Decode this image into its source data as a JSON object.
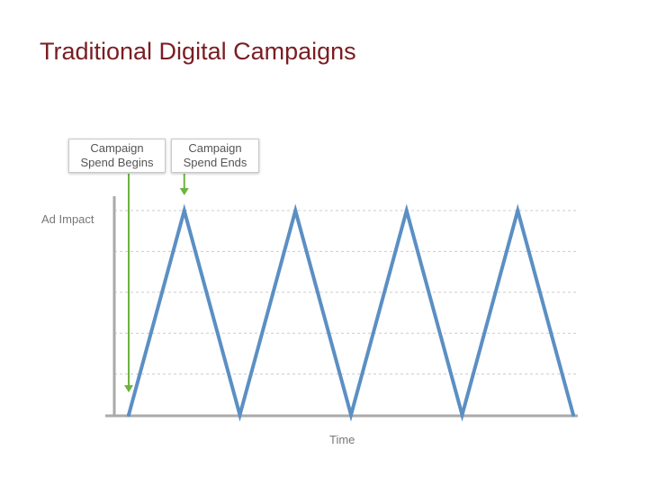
{
  "slide": {
    "title": "Traditional Digital Campaigns"
  },
  "colors": {
    "title": "#7a1d22",
    "series": "#5b8fc4",
    "arrow": "#6db33f",
    "axis": "#aaaaaa",
    "grid": "#cccccc"
  },
  "chart_data": {
    "type": "line",
    "title": "",
    "xlabel": "Time",
    "ylabel": "Ad Impact",
    "grid": true,
    "grid_style": "dashed",
    "xlim": [
      0,
      8
    ],
    "ylim": [
      0,
      1
    ],
    "series": [
      {
        "values": [
          {
            "x": 0,
            "y": 0
          },
          {
            "x": 1,
            "y": 1
          },
          {
            "x": 2,
            "y": 0
          },
          {
            "x": 3,
            "y": 1
          },
          {
            "x": 4,
            "y": 0
          },
          {
            "x": 5,
            "y": 1
          },
          {
            "x": 6,
            "y": 0
          },
          {
            "x": 7,
            "y": 1
          },
          {
            "x": 8,
            "y": 0
          }
        ]
      }
    ],
    "annotations": [
      {
        "line1": "Campaign",
        "line2": "Spend Begins",
        "x": 0
      },
      {
        "line1": "Campaign",
        "line2": "Spend Ends",
        "x": 1
      }
    ]
  }
}
